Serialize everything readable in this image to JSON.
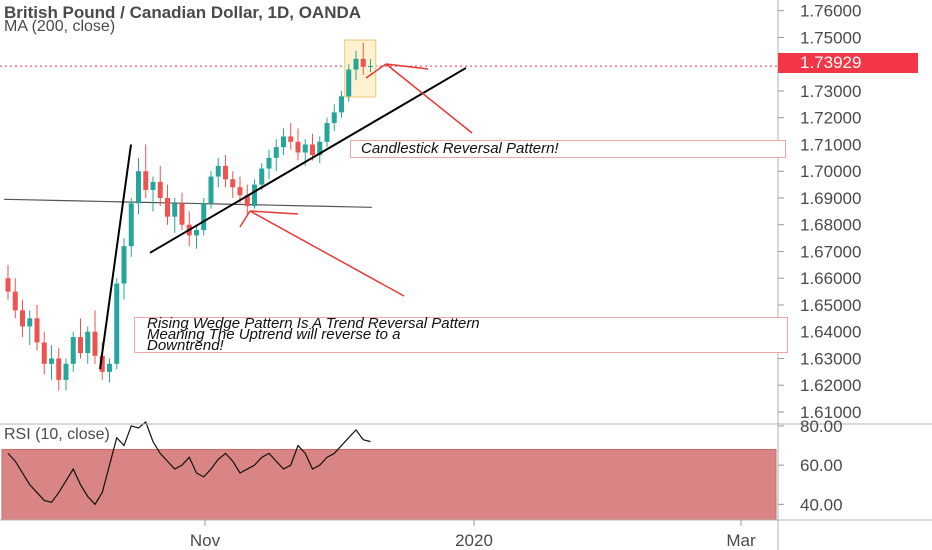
{
  "header": {
    "title": "British Pound / Canadian Dollar, 1D, OANDA",
    "ma_label": "MA (200, close)",
    "rsi_label": "RSI (10, close)"
  },
  "price_tag": "1.73929",
  "annotations": {
    "candlestick": "Candlestick Reversal Pattern!",
    "wedge_lines": [
      "Rising Wedge Pattern Is A Trend Reversal Pattern",
      "Meaning The Uptrend will reverse to a",
      "Downtrend!"
    ]
  },
  "colors": {
    "up": "#26a69a",
    "down": "#ef5350",
    "ma": "#555555",
    "rsi_fill": "#d98585",
    "highlight": "#fdf2cf",
    "arrow": "#e53935",
    "price_tag": "#f23645"
  },
  "chart_data": [
    {
      "type": "candlestick",
      "title": "British Pound / Canadian Dollar, 1D, OANDA",
      "x_ticks": [
        "Nov",
        "2020",
        "Mar"
      ],
      "y_ticks": [
        "1.76000",
        "1.75000",
        "1.73000",
        "1.72000",
        "1.71000",
        "1.70000",
        "1.69000",
        "1.68000",
        "1.67000",
        "1.66000",
        "1.65000",
        "1.64000",
        "1.63000",
        "1.62000",
        "1.61000"
      ],
      "ylim": [
        1.607,
        1.764
      ],
      "last_price": 1.73929,
      "candles": [
        [
          1.66,
          1.665,
          1.652,
          1.655
        ],
        [
          1.655,
          1.66,
          1.645,
          1.648
        ],
        [
          1.648,
          1.652,
          1.638,
          1.642
        ],
        [
          1.642,
          1.648,
          1.635,
          1.645
        ],
        [
          1.645,
          1.65,
          1.633,
          1.636
        ],
        [
          1.636,
          1.64,
          1.624,
          1.628
        ],
        [
          1.628,
          1.635,
          1.622,
          1.63
        ],
        [
          1.63,
          1.634,
          1.618,
          1.622
        ],
        [
          1.622,
          1.63,
          1.618,
          1.628
        ],
        [
          1.628,
          1.64,
          1.625,
          1.638
        ],
        [
          1.638,
          1.645,
          1.63,
          1.632
        ],
        [
          1.632,
          1.642,
          1.628,
          1.64
        ],
        [
          1.64,
          1.648,
          1.628,
          1.631
        ],
        [
          1.631,
          1.636,
          1.622,
          1.625
        ],
        [
          1.625,
          1.63,
          1.621,
          1.628
        ],
        [
          1.628,
          1.66,
          1.626,
          1.658
        ],
        [
          1.658,
          1.675,
          1.652,
          1.672
        ],
        [
          1.672,
          1.69,
          1.668,
          1.688
        ],
        [
          1.688,
          1.705,
          1.684,
          1.7
        ],
        [
          1.7,
          1.71,
          1.69,
          1.693
        ],
        [
          1.693,
          1.698,
          1.685,
          1.696
        ],
        [
          1.696,
          1.702,
          1.687,
          1.69
        ],
        [
          1.69,
          1.695,
          1.68,
          1.683
        ],
        [
          1.683,
          1.69,
          1.677,
          1.688
        ],
        [
          1.688,
          1.692,
          1.678,
          1.68
        ],
        [
          1.68,
          1.685,
          1.672,
          1.676
        ],
        [
          1.676,
          1.68,
          1.671,
          1.678
        ],
        [
          1.678,
          1.69,
          1.676,
          1.688
        ],
        [
          1.688,
          1.7,
          1.686,
          1.698
        ],
        [
          1.698,
          1.705,
          1.694,
          1.702
        ],
        [
          1.702,
          1.706,
          1.694,
          1.697
        ],
        [
          1.697,
          1.7,
          1.69,
          1.694
        ],
        [
          1.694,
          1.698,
          1.688,
          1.691
        ],
        [
          1.691,
          1.695,
          1.684,
          1.687
        ],
        [
          1.687,
          1.697,
          1.686,
          1.695
        ],
        [
          1.695,
          1.703,
          1.693,
          1.701
        ],
        [
          1.701,
          1.708,
          1.697,
          1.705
        ],
        [
          1.705,
          1.712,
          1.7,
          1.709
        ],
        [
          1.709,
          1.716,
          1.706,
          1.713
        ],
        [
          1.713,
          1.718,
          1.708,
          1.711
        ],
        [
          1.711,
          1.716,
          1.704,
          1.707
        ],
        [
          1.707,
          1.712,
          1.702,
          1.71
        ],
        [
          1.71,
          1.714,
          1.704,
          1.706
        ],
        [
          1.706,
          1.713,
          1.703,
          1.711
        ],
        [
          1.711,
          1.72,
          1.709,
          1.718
        ],
        [
          1.718,
          1.725,
          1.715,
          1.722
        ],
        [
          1.722,
          1.73,
          1.72,
          1.728
        ],
        [
          1.728,
          1.74,
          1.726,
          1.738
        ],
        [
          1.738,
          1.745,
          1.734,
          1.742
        ],
        [
          1.742,
          1.748,
          1.736,
          1.739
        ],
        [
          1.739,
          1.742,
          1.737,
          1.7393
        ]
      ],
      "ma_200": [
        1.6895,
        1.6893,
        1.6891,
        1.6889,
        1.6887,
        1.6885,
        1.6883,
        1.6881,
        1.6879,
        1.6877,
        1.6875,
        1.6873,
        1.6871,
        1.6869,
        1.6867,
        1.6865
      ],
      "trendlines": [
        {
          "name": "wedge support",
          "from": [
            1.6695
          ],
          "to": [
            1.7386
          ]
        },
        {
          "name": "impulse leg",
          "from": [
            1.626
          ],
          "to": [
            1.71
          ]
        }
      ],
      "rsi": {
        "ylim": [
          32,
          81
        ],
        "y_ticks": [
          "80.00",
          "60.00",
          "40.00"
        ],
        "band": [
          32,
          68
        ],
        "values": [
          66,
          62,
          56,
          50,
          46,
          42,
          41,
          46,
          52,
          58,
          50,
          44,
          40,
          46,
          60,
          74,
          70,
          80,
          79,
          82,
          72,
          66,
          62,
          58,
          60,
          64,
          56,
          54,
          58,
          63,
          66,
          62,
          56,
          58,
          60,
          64,
          66,
          62,
          58,
          60,
          70,
          66,
          58,
          60,
          64,
          66,
          70,
          74,
          78,
          73,
          72
        ]
      }
    }
  ]
}
